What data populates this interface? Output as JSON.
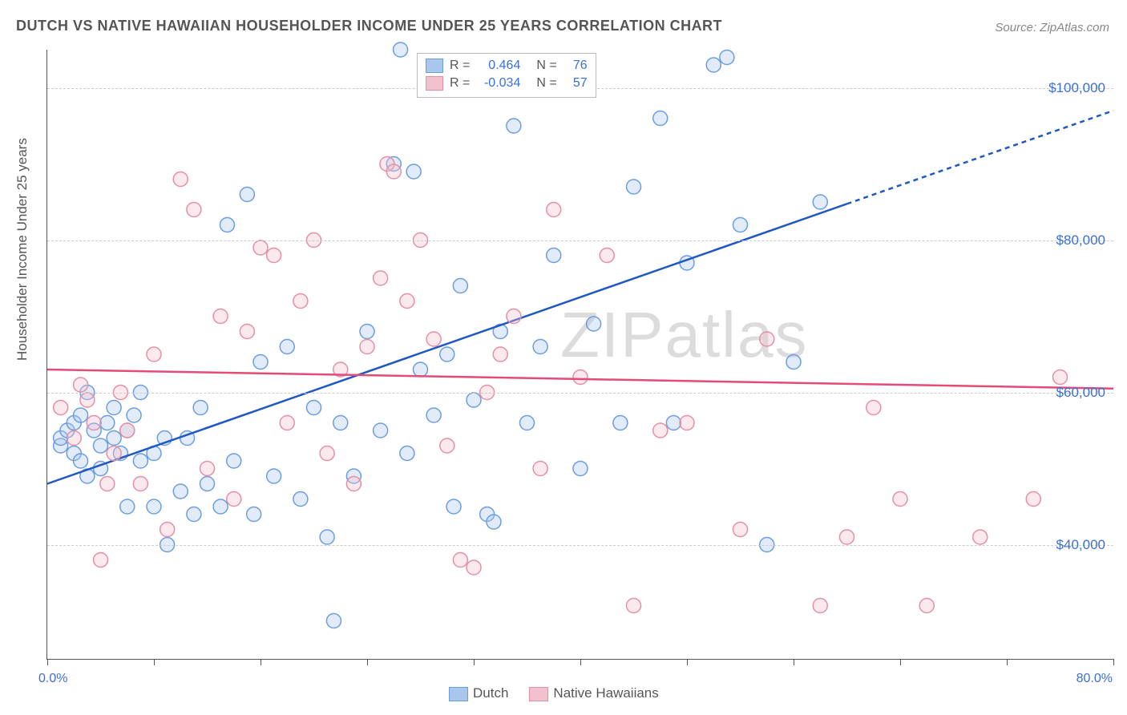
{
  "title": "DUTCH VS NATIVE HAWAIIAN HOUSEHOLDER INCOME UNDER 25 YEARS CORRELATION CHART",
  "source_label": "Source: ",
  "source_site": "ZipAtlas.com",
  "ylabel": "Householder Income Under 25 years",
  "watermark": "ZIPatlas",
  "chart": {
    "type": "scatter",
    "background_color": "#ffffff",
    "grid_color": "#cccccc",
    "axis_color": "#555555",
    "label_color": "#555555",
    "value_color": "#3b6fd6",
    "xlim": [
      0,
      80
    ],
    "ylim": [
      25000,
      105000
    ],
    "x_tick_positions": [
      0,
      8,
      16,
      24,
      32,
      40,
      48,
      56,
      64,
      72,
      80
    ],
    "y_gridlines": [
      40000,
      60000,
      80000,
      100000
    ],
    "y_tick_labels": [
      "$40,000",
      "$60,000",
      "$80,000",
      "$100,000"
    ],
    "xlim_labels": [
      "0.0%",
      "80.0%"
    ],
    "marker_radius": 9,
    "marker_stroke_width": 1.5,
    "marker_fill_opacity": 0.35,
    "line_width": 2.5,
    "title_fontsize": 18,
    "label_fontsize": 17,
    "tick_fontsize": 17
  },
  "series": [
    {
      "name": "Dutch",
      "r_label": "R =",
      "r_value": "0.464",
      "n_label": "N =",
      "n_value": "76",
      "color": "#6b9de0",
      "fill": "#a9c6ed",
      "line_color": "#1f57c4",
      "trend": {
        "x1": 0,
        "y1": 48000,
        "x2": 80,
        "y2": 97000,
        "dash_after_x": 60
      },
      "points": [
        [
          1,
          53000
        ],
        [
          1,
          54000
        ],
        [
          1.5,
          55000
        ],
        [
          2,
          52000
        ],
        [
          2,
          56000
        ],
        [
          2.5,
          57000
        ],
        [
          2.5,
          51000
        ],
        [
          3,
          49000
        ],
        [
          3,
          60000
        ],
        [
          3.5,
          55000
        ],
        [
          4,
          53000
        ],
        [
          4,
          50000
        ],
        [
          4.5,
          56000
        ],
        [
          5,
          58000
        ],
        [
          5,
          54000
        ],
        [
          5.5,
          52000
        ],
        [
          6,
          45000
        ],
        [
          6,
          55000
        ],
        [
          6.5,
          57000
        ],
        [
          7,
          51000
        ],
        [
          7,
          60000
        ],
        [
          8,
          52000
        ],
        [
          8,
          45000
        ],
        [
          8.8,
          54000
        ],
        [
          9,
          40000
        ],
        [
          10,
          47000
        ],
        [
          10.5,
          54000
        ],
        [
          11,
          44000
        ],
        [
          11.5,
          58000
        ],
        [
          12,
          48000
        ],
        [
          13,
          45000
        ],
        [
          13.5,
          82000
        ],
        [
          14,
          51000
        ],
        [
          15,
          86000
        ],
        [
          15.5,
          44000
        ],
        [
          16,
          64000
        ],
        [
          17,
          49000
        ],
        [
          18,
          66000
        ],
        [
          19,
          46000
        ],
        [
          20,
          58000
        ],
        [
          21,
          41000
        ],
        [
          21.5,
          30000
        ],
        [
          22,
          56000
        ],
        [
          23,
          49000
        ],
        [
          24,
          68000
        ],
        [
          25,
          55000
        ],
        [
          26,
          90000
        ],
        [
          26.5,
          105000
        ],
        [
          27,
          52000
        ],
        [
          27.5,
          89000
        ],
        [
          28,
          63000
        ],
        [
          29,
          57000
        ],
        [
          30,
          65000
        ],
        [
          30.5,
          45000
        ],
        [
          31,
          74000
        ],
        [
          32,
          59000
        ],
        [
          33,
          44000
        ],
        [
          33.5,
          43000
        ],
        [
          34,
          68000
        ],
        [
          35,
          95000
        ],
        [
          36,
          56000
        ],
        [
          37,
          66000
        ],
        [
          38,
          78000
        ],
        [
          40,
          50000
        ],
        [
          41,
          69000
        ],
        [
          43,
          56000
        ],
        [
          44,
          87000
        ],
        [
          46,
          96000
        ],
        [
          47,
          56000
        ],
        [
          48,
          77000
        ],
        [
          50,
          103000
        ],
        [
          51,
          104000
        ],
        [
          52,
          82000
        ],
        [
          54,
          40000
        ],
        [
          56,
          64000
        ],
        [
          58,
          85000
        ]
      ]
    },
    {
      "name": "Native Hawaiians",
      "r_label": "R =",
      "r_value": "-0.034",
      "n_label": "N =",
      "n_value": "57",
      "color": "#e58fa5",
      "fill": "#f3c1cd",
      "line_color": "#e34b79",
      "trend": {
        "x1": 0,
        "y1": 63000,
        "x2": 80,
        "y2": 60500,
        "dash_after_x": 80
      },
      "points": [
        [
          1,
          58000
        ],
        [
          2,
          54000
        ],
        [
          2.5,
          61000
        ],
        [
          3,
          59000
        ],
        [
          3.5,
          56000
        ],
        [
          4,
          38000
        ],
        [
          4.5,
          48000
        ],
        [
          5,
          52000
        ],
        [
          5.5,
          60000
        ],
        [
          6,
          55000
        ],
        [
          7,
          48000
        ],
        [
          8,
          65000
        ],
        [
          9,
          42000
        ],
        [
          10,
          88000
        ],
        [
          11,
          84000
        ],
        [
          12,
          50000
        ],
        [
          13,
          70000
        ],
        [
          14,
          46000
        ],
        [
          15,
          68000
        ],
        [
          16,
          79000
        ],
        [
          17,
          78000
        ],
        [
          18,
          56000
        ],
        [
          19,
          72000
        ],
        [
          20,
          80000
        ],
        [
          21,
          52000
        ],
        [
          22,
          63000
        ],
        [
          23,
          48000
        ],
        [
          24,
          66000
        ],
        [
          25,
          75000
        ],
        [
          25.5,
          90000
        ],
        [
          26,
          89000
        ],
        [
          27,
          72000
        ],
        [
          28,
          80000
        ],
        [
          29,
          67000
        ],
        [
          30,
          53000
        ],
        [
          31,
          38000
        ],
        [
          32,
          37000
        ],
        [
          33,
          60000
        ],
        [
          34,
          65000
        ],
        [
          35,
          70000
        ],
        [
          37,
          50000
        ],
        [
          38,
          84000
        ],
        [
          40,
          62000
        ],
        [
          42,
          78000
        ],
        [
          44,
          32000
        ],
        [
          46,
          55000
        ],
        [
          48,
          56000
        ],
        [
          52,
          42000
        ],
        [
          54,
          67000
        ],
        [
          58,
          32000
        ],
        [
          60,
          41000
        ],
        [
          62,
          58000
        ],
        [
          64,
          46000
        ],
        [
          66,
          32000
        ],
        [
          70,
          41000
        ],
        [
          74,
          46000
        ],
        [
          76,
          62000
        ]
      ]
    }
  ],
  "legend_bottom": {
    "items": [
      "Dutch",
      "Native Hawaiians"
    ]
  }
}
